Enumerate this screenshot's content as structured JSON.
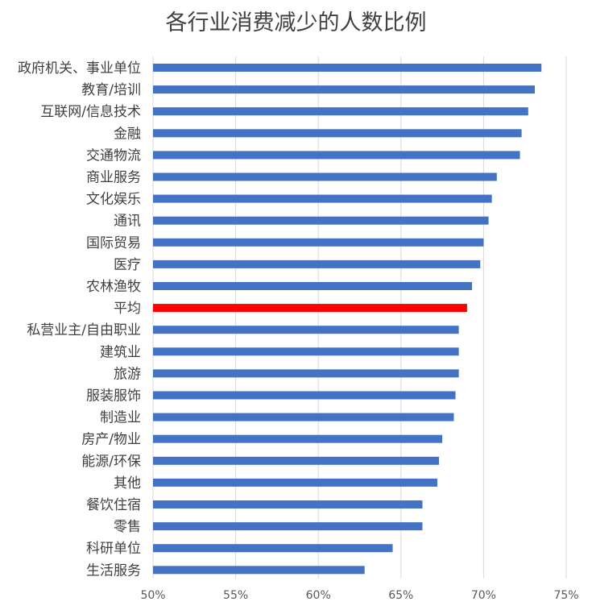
{
  "chart_data": {
    "type": "bar",
    "orientation": "horizontal",
    "title": "各行业消费减少的人数比例",
    "xlabel": "",
    "ylabel": "",
    "xlim": [
      0.5,
      0.75
    ],
    "x_ticks": [
      "50%",
      "55%",
      "60%",
      "65%",
      "70%",
      "75%"
    ],
    "grid": "vertical",
    "legend": "none",
    "colors": {
      "bar": "#4472C4",
      "highlight": "#FF0000",
      "grid": "#D9D9D9"
    },
    "highlight_category": "平均",
    "categories": [
      "政府机关、事业单位",
      "教育/培训",
      "互联网/信息技术",
      "金融",
      "交通物流",
      "商业服务",
      "文化娱乐",
      "通讯",
      "国际贸易",
      "医疗",
      "农林渔牧",
      "平均",
      "私营业主/自由职业",
      "建筑业",
      "旅游",
      "服装服饰",
      "制造业",
      "房产/物业",
      "能源/环保",
      "其他",
      "餐饮住宿",
      "零售",
      "科研单位",
      "生活服务"
    ],
    "values": [
      0.735,
      0.731,
      0.727,
      0.723,
      0.722,
      0.708,
      0.705,
      0.703,
      0.7,
      0.698,
      0.693,
      0.69,
      0.685,
      0.685,
      0.685,
      0.683,
      0.682,
      0.675,
      0.673,
      0.672,
      0.663,
      0.663,
      0.645,
      0.628
    ]
  }
}
